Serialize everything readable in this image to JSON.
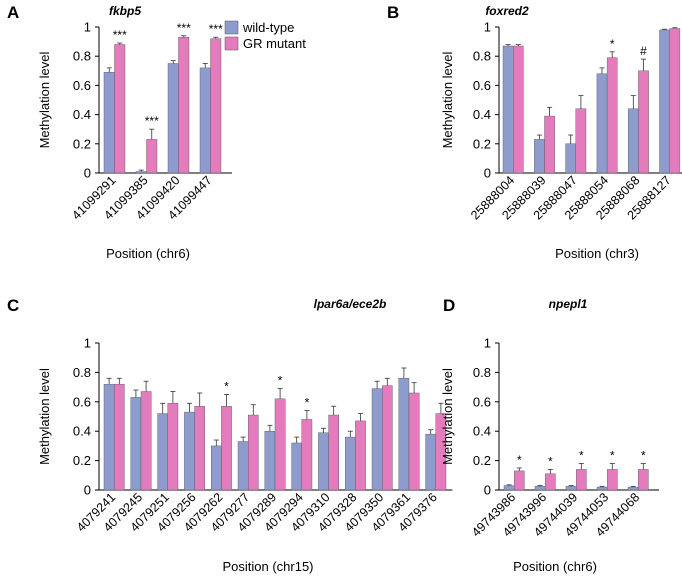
{
  "colors": {
    "wild_type": "#8e9ccd",
    "mutant": "#e47bbd",
    "axis": "#000000"
  },
  "legend": {
    "wild_type": "wild-type",
    "mutant": "GR mutant"
  },
  "chart_data": [
    {
      "panel": "A",
      "type": "bar",
      "title": "fkbp5",
      "ylabel": "Methylation level",
      "xlabel": "Position (chr6)",
      "ylim": [
        0,
        1
      ],
      "yticks": [
        "0",
        "0.2",
        "0.4",
        "0.6",
        "0.8",
        "1"
      ],
      "categories": [
        "41099291",
        "41099385",
        "41099420",
        "41099447"
      ],
      "series": [
        {
          "name": "wild-type",
          "values": [
            0.69,
            0.01,
            0.75,
            0.72
          ],
          "errors": [
            0.03,
            0.01,
            0.02,
            0.03
          ]
        },
        {
          "name": "GR mutant",
          "values": [
            0.88,
            0.23,
            0.93,
            0.92
          ],
          "errors": [
            0.01,
            0.07,
            0.01,
            0.01
          ]
        }
      ],
      "annotations": [
        "***",
        "***",
        "***",
        "***"
      ]
    },
    {
      "panel": "B",
      "type": "bar",
      "title": "foxred2",
      "ylabel": "Methylation level",
      "xlabel": "Position (chr3)",
      "ylim": [
        0,
        1
      ],
      "yticks": [
        "0",
        "0.2",
        "0.4",
        "0.6",
        "0.8",
        "1"
      ],
      "categories": [
        "25888004",
        "25888039",
        "25888047",
        "25888054",
        "25888068",
        "25888127"
      ],
      "series": [
        {
          "name": "wild-type",
          "values": [
            0.87,
            0.23,
            0.2,
            0.68,
            0.44,
            0.98
          ],
          "errors": [
            0.01,
            0.03,
            0.06,
            0.04,
            0.09,
            0.005
          ]
        },
        {
          "name": "GR mutant",
          "values": [
            0.87,
            0.39,
            0.44,
            0.79,
            0.7,
            0.99
          ],
          "errors": [
            0.01,
            0.06,
            0.09,
            0.04,
            0.08,
            0.005
          ]
        }
      ],
      "annotations": [
        "",
        "",
        "",
        "*",
        "#",
        ""
      ]
    },
    {
      "panel": "C",
      "type": "bar",
      "title": "lpar6a/ece2b",
      "ylabel": "Methylation level",
      "xlabel": "Position (chr15)",
      "ylim": [
        0,
        1
      ],
      "yticks": [
        "0",
        "0.2",
        "0.4",
        "0.6",
        "0.8",
        "1"
      ],
      "categories": [
        "4079241",
        "4079245",
        "4079251",
        "4079256",
        "4079262",
        "4079277",
        "4079289",
        "4079294",
        "4079310",
        "4079328",
        "4079350",
        "4079361",
        "4079376"
      ],
      "series": [
        {
          "name": "wild-type",
          "values": [
            0.72,
            0.63,
            0.52,
            0.53,
            0.3,
            0.33,
            0.4,
            0.32,
            0.39,
            0.36,
            0.69,
            0.76,
            0.38
          ],
          "errors": [
            0.04,
            0.05,
            0.07,
            0.06,
            0.04,
            0.03,
            0.04,
            0.04,
            0.03,
            0.04,
            0.05,
            0.07,
            0.03
          ]
        },
        {
          "name": "GR mutant",
          "values": [
            0.72,
            0.67,
            0.59,
            0.57,
            0.57,
            0.51,
            0.62,
            0.48,
            0.51,
            0.47,
            0.71,
            0.66,
            0.52
          ],
          "errors": [
            0.04,
            0.07,
            0.08,
            0.09,
            0.08,
            0.07,
            0.07,
            0.06,
            0.06,
            0.05,
            0.05,
            0.07,
            0.07
          ]
        }
      ],
      "annotations": [
        "",
        "",
        "",
        "",
        "*",
        "",
        "*",
        "*",
        "",
        "",
        "",
        "",
        ""
      ]
    },
    {
      "panel": "D",
      "type": "bar",
      "title": "npepl1",
      "ylabel": "Methylation level",
      "xlabel": "Position (chr6)",
      "ylim": [
        0,
        1
      ],
      "yticks": [
        "0",
        "0.2",
        "0.4",
        "0.6",
        "0.8",
        "1"
      ],
      "categories": [
        "49743986",
        "49743996",
        "49744039",
        "49744053",
        "49744068"
      ],
      "series": [
        {
          "name": "wild-type",
          "values": [
            0.03,
            0.025,
            0.025,
            0.02,
            0.02
          ],
          "errors": [
            0.005,
            0.005,
            0.005,
            0.005,
            0.005
          ]
        },
        {
          "name": "GR mutant",
          "values": [
            0.13,
            0.11,
            0.14,
            0.14,
            0.14
          ],
          "errors": [
            0.02,
            0.03,
            0.04,
            0.04,
            0.04
          ]
        }
      ],
      "annotations": [
        "*",
        "*",
        "*",
        "*",
        "*"
      ]
    }
  ]
}
